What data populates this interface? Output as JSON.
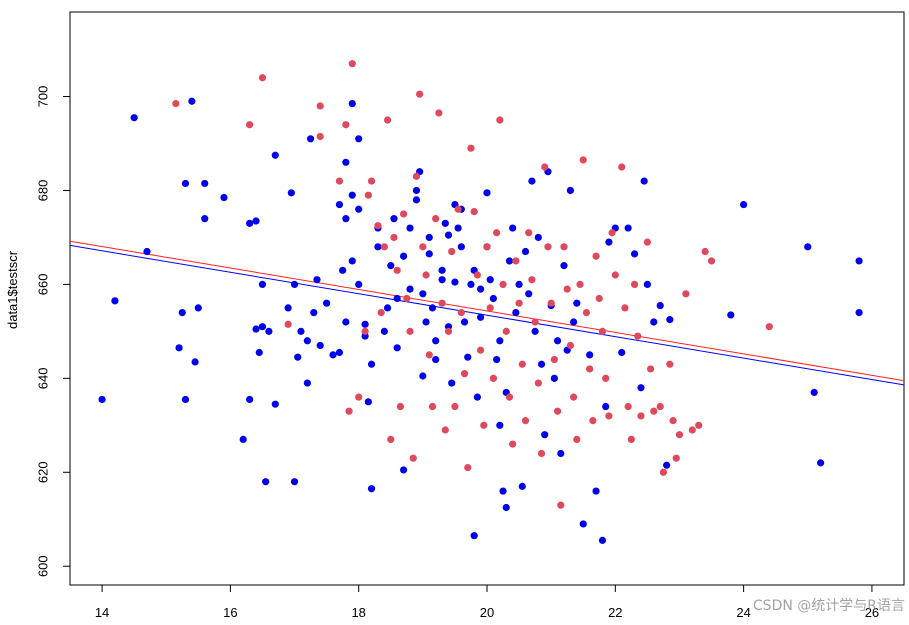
{
  "chart_data": {
    "type": "scatter",
    "title": "",
    "xlabel": "",
    "ylabel": "data1$testscr",
    "xlim": [
      13.5,
      26.5
    ],
    "ylim": [
      596,
      718
    ],
    "x_ticks": [
      14,
      16,
      18,
      20,
      22,
      24,
      26
    ],
    "y_ticks": [
      600,
      620,
      640,
      660,
      680,
      700
    ],
    "grid": false,
    "series": [
      {
        "color": "#0000ee",
        "points": [
          [
            14,
            635.5
          ],
          [
            14.2,
            656.5
          ],
          [
            14.5,
            695.5
          ],
          [
            14.7,
            667
          ],
          [
            15.2,
            646.5
          ],
          [
            15.25,
            654
          ],
          [
            15.3,
            681.5
          ],
          [
            15.3,
            635.5
          ],
          [
            15.4,
            699
          ],
          [
            15.45,
            643.5
          ],
          [
            15.5,
            655
          ],
          [
            15.6,
            681.5
          ],
          [
            15.6,
            674
          ],
          [
            15.9,
            678.5
          ],
          [
            16.2,
            627
          ],
          [
            16.3,
            673
          ],
          [
            16.3,
            635.5
          ],
          [
            16.4,
            650.5
          ],
          [
            16.4,
            673.5
          ],
          [
            16.45,
            645.5
          ],
          [
            16.5,
            651
          ],
          [
            16.5,
            660
          ],
          [
            16.55,
            618
          ],
          [
            16.6,
            650
          ],
          [
            16.7,
            634.5
          ],
          [
            16.7,
            687.5
          ],
          [
            16.9,
            655
          ],
          [
            16.95,
            679.5
          ],
          [
            17,
            660
          ],
          [
            17,
            618
          ],
          [
            17.05,
            644.5
          ],
          [
            17.1,
            650
          ],
          [
            17.2,
            639
          ],
          [
            17.2,
            648
          ],
          [
            17.25,
            691
          ],
          [
            17.3,
            654
          ],
          [
            17.35,
            661
          ],
          [
            17.4,
            647
          ],
          [
            17.5,
            656
          ],
          [
            17.6,
            645
          ],
          [
            17.7,
            677
          ],
          [
            17.7,
            645.5
          ],
          [
            17.75,
            663
          ],
          [
            17.8,
            686
          ],
          [
            17.8,
            652
          ],
          [
            17.8,
            674
          ],
          [
            17.9,
            698.5
          ],
          [
            17.9,
            679
          ],
          [
            17.9,
            665
          ],
          [
            18,
            691
          ],
          [
            18,
            676
          ],
          [
            18,
            660
          ],
          [
            18.1,
            651.5
          ],
          [
            18.1,
            649
          ],
          [
            18.15,
            635
          ],
          [
            18.2,
            643
          ],
          [
            18.2,
            616.5
          ],
          [
            18.3,
            672
          ],
          [
            18.3,
            668
          ],
          [
            18.4,
            650
          ],
          [
            18.45,
            655
          ],
          [
            18.5,
            664
          ],
          [
            18.55,
            674
          ],
          [
            18.6,
            657
          ],
          [
            18.6,
            646.5
          ],
          [
            18.7,
            620.5
          ],
          [
            18.7,
            666
          ],
          [
            18.8,
            672
          ],
          [
            18.8,
            659
          ],
          [
            18.9,
            678
          ],
          [
            18.9,
            680
          ],
          [
            18.95,
            684
          ],
          [
            19.0,
            658
          ],
          [
            19.0,
            640.5
          ],
          [
            19.05,
            652
          ],
          [
            19.1,
            670
          ],
          [
            19.1,
            666.5
          ],
          [
            19.15,
            655
          ],
          [
            19.2,
            648
          ],
          [
            19.2,
            644
          ],
          [
            19.3,
            661
          ],
          [
            19.3,
            663
          ],
          [
            19.35,
            673
          ],
          [
            19.4,
            670.5
          ],
          [
            19.4,
            651
          ],
          [
            19.45,
            639
          ],
          [
            19.5,
            677
          ],
          [
            19.5,
            660.5
          ],
          [
            19.55,
            672
          ],
          [
            19.6,
            676
          ],
          [
            19.6,
            668
          ],
          [
            19.65,
            652
          ],
          [
            19.7,
            644.5
          ],
          [
            19.75,
            660
          ],
          [
            19.8,
            606.5
          ],
          [
            19.8,
            663
          ],
          [
            19.85,
            636
          ],
          [
            19.9,
            659
          ],
          [
            19.9,
            653
          ],
          [
            20.0,
            679.5
          ],
          [
            20.0,
            668
          ],
          [
            20.05,
            661
          ],
          [
            20.1,
            657
          ],
          [
            20.15,
            644
          ],
          [
            20.2,
            648
          ],
          [
            20.2,
            630
          ],
          [
            20.25,
            616
          ],
          [
            20.3,
            637
          ],
          [
            20.3,
            612.5
          ],
          [
            20.35,
            665
          ],
          [
            20.4,
            672
          ],
          [
            20.45,
            654
          ],
          [
            20.5,
            660
          ],
          [
            20.55,
            617
          ],
          [
            20.6,
            667
          ],
          [
            20.65,
            658
          ],
          [
            20.7,
            682
          ],
          [
            20.75,
            650
          ],
          [
            20.8,
            670
          ],
          [
            20.85,
            643
          ],
          [
            20.9,
            628
          ],
          [
            20.95,
            684
          ],
          [
            21.0,
            655.5
          ],
          [
            21.05,
            640
          ],
          [
            21.1,
            648
          ],
          [
            21.15,
            624
          ],
          [
            21.2,
            664
          ],
          [
            21.25,
            646
          ],
          [
            21.3,
            680
          ],
          [
            21.35,
            652
          ],
          [
            21.4,
            656
          ],
          [
            21.5,
            609
          ],
          [
            21.6,
            645
          ],
          [
            21.7,
            616
          ],
          [
            21.8,
            605.5
          ],
          [
            21.85,
            634
          ],
          [
            21.9,
            669
          ],
          [
            22.0,
            672
          ],
          [
            22.1,
            645.5
          ],
          [
            22.2,
            672
          ],
          [
            22.3,
            666.5
          ],
          [
            22.4,
            638
          ],
          [
            22.45,
            682
          ],
          [
            22.5,
            660
          ],
          [
            22.6,
            652
          ],
          [
            22.7,
            655.5
          ],
          [
            22.8,
            621.5
          ],
          [
            22.85,
            652.5
          ],
          [
            23.8,
            653.5
          ],
          [
            24.0,
            677
          ],
          [
            25.0,
            668
          ],
          [
            25.1,
            637
          ],
          [
            25.2,
            622
          ],
          [
            25.8,
            665
          ],
          [
            25.8,
            654
          ]
        ]
      },
      {
        "color": "#e0485c",
        "points": [
          [
            15.15,
            698.5
          ],
          [
            16.3,
            694
          ],
          [
            16.5,
            704
          ],
          [
            16.9,
            651.5
          ],
          [
            17.4,
            691.5
          ],
          [
            17.4,
            698
          ],
          [
            17.7,
            682
          ],
          [
            17.8,
            694
          ],
          [
            17.85,
            633
          ],
          [
            17.9,
            707
          ],
          [
            18.0,
            636
          ],
          [
            18.1,
            650
          ],
          [
            18.15,
            679
          ],
          [
            18.2,
            682
          ],
          [
            18.3,
            672.5
          ],
          [
            18.35,
            654
          ],
          [
            18.4,
            668
          ],
          [
            18.45,
            695
          ],
          [
            18.5,
            627
          ],
          [
            18.55,
            670
          ],
          [
            18.6,
            663
          ],
          [
            18.65,
            634
          ],
          [
            18.7,
            675
          ],
          [
            18.75,
            657
          ],
          [
            18.8,
            650
          ],
          [
            18.85,
            623
          ],
          [
            18.9,
            683
          ],
          [
            18.95,
            700.5
          ],
          [
            19.0,
            668
          ],
          [
            19.05,
            662
          ],
          [
            19.1,
            645
          ],
          [
            19.15,
            634
          ],
          [
            19.2,
            674
          ],
          [
            19.25,
            696.5
          ],
          [
            19.3,
            656
          ],
          [
            19.35,
            629
          ],
          [
            19.4,
            650
          ],
          [
            19.45,
            667
          ],
          [
            19.5,
            634
          ],
          [
            19.55,
            676
          ],
          [
            19.6,
            654
          ],
          [
            19.65,
            641
          ],
          [
            19.7,
            621
          ],
          [
            19.75,
            689
          ],
          [
            19.8,
            675.5
          ],
          [
            19.85,
            662
          ],
          [
            19.9,
            646
          ],
          [
            19.95,
            630
          ],
          [
            20.0,
            668
          ],
          [
            20.05,
            655
          ],
          [
            20.1,
            640
          ],
          [
            20.15,
            671
          ],
          [
            20.2,
            695
          ],
          [
            20.25,
            660
          ],
          [
            20.3,
            650
          ],
          [
            20.35,
            636
          ],
          [
            20.4,
            626
          ],
          [
            20.45,
            665
          ],
          [
            20.5,
            656
          ],
          [
            20.55,
            643
          ],
          [
            20.6,
            631
          ],
          [
            20.65,
            671
          ],
          [
            20.7,
            661
          ],
          [
            20.75,
            652
          ],
          [
            20.8,
            639
          ],
          [
            20.85,
            624
          ],
          [
            20.9,
            685
          ],
          [
            20.95,
            668
          ],
          [
            21.0,
            656
          ],
          [
            21.05,
            644
          ],
          [
            21.1,
            633
          ],
          [
            21.15,
            613
          ],
          [
            21.2,
            668
          ],
          [
            21.25,
            659
          ],
          [
            21.3,
            647
          ],
          [
            21.35,
            636
          ],
          [
            21.4,
            627
          ],
          [
            21.45,
            660
          ],
          [
            21.5,
            686.5
          ],
          [
            21.55,
            654
          ],
          [
            21.6,
            642
          ],
          [
            21.65,
            631
          ],
          [
            21.7,
            666
          ],
          [
            21.75,
            657
          ],
          [
            21.8,
            650
          ],
          [
            21.85,
            640
          ],
          [
            21.9,
            632
          ],
          [
            21.95,
            671
          ],
          [
            22.0,
            662
          ],
          [
            22.1,
            685
          ],
          [
            22.15,
            655
          ],
          [
            22.2,
            634
          ],
          [
            22.25,
            627
          ],
          [
            22.3,
            660
          ],
          [
            22.35,
            649
          ],
          [
            22.4,
            632
          ],
          [
            22.5,
            669
          ],
          [
            22.55,
            642
          ],
          [
            22.6,
            633
          ],
          [
            22.7,
            634
          ],
          [
            22.75,
            620
          ],
          [
            22.85,
            643
          ],
          [
            22.9,
            631
          ],
          [
            22.95,
            623
          ],
          [
            23.0,
            628
          ],
          [
            23.1,
            658
          ],
          [
            23.2,
            629
          ],
          [
            23.3,
            630
          ],
          [
            23.4,
            667
          ],
          [
            23.5,
            665
          ],
          [
            24.4,
            651
          ]
        ]
      }
    ],
    "lines": [
      {
        "color": "#ff2020",
        "x": [
          13.5,
          26.5
        ],
        "y": [
          669.2,
          639.5
        ]
      },
      {
        "color": "#0000ff",
        "x": [
          13.5,
          26.5
        ],
        "y": [
          668.3,
          638.6
        ]
      }
    ]
  },
  "watermark": "CSDN @统计学与R语言"
}
